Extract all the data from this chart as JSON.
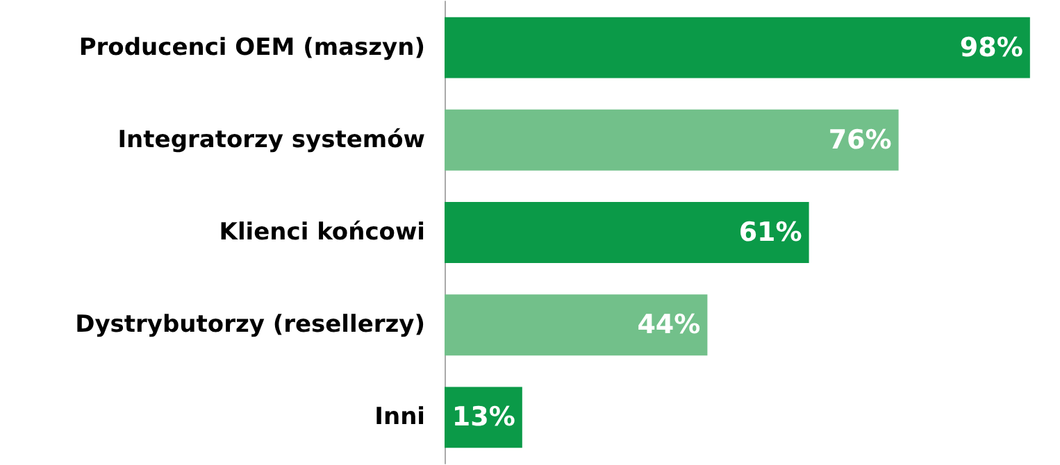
{
  "chart_data": {
    "type": "bar",
    "orientation": "horizontal",
    "categories": [
      "Producenci OEM (maszyn)",
      "Integratorzy systemów",
      "Klienci końcowi",
      "Dystrybutorzy (resellerzy)",
      "Inni"
    ],
    "values": [
      98,
      76,
      61,
      44,
      13
    ],
    "colors": [
      "#0b9a48",
      "#72c08a",
      "#0b9a48",
      "#72c08a",
      "#0b9a48"
    ],
    "value_labels": [
      "98%",
      "76%",
      "61%",
      "44%",
      "13%"
    ],
    "grid": false
  }
}
